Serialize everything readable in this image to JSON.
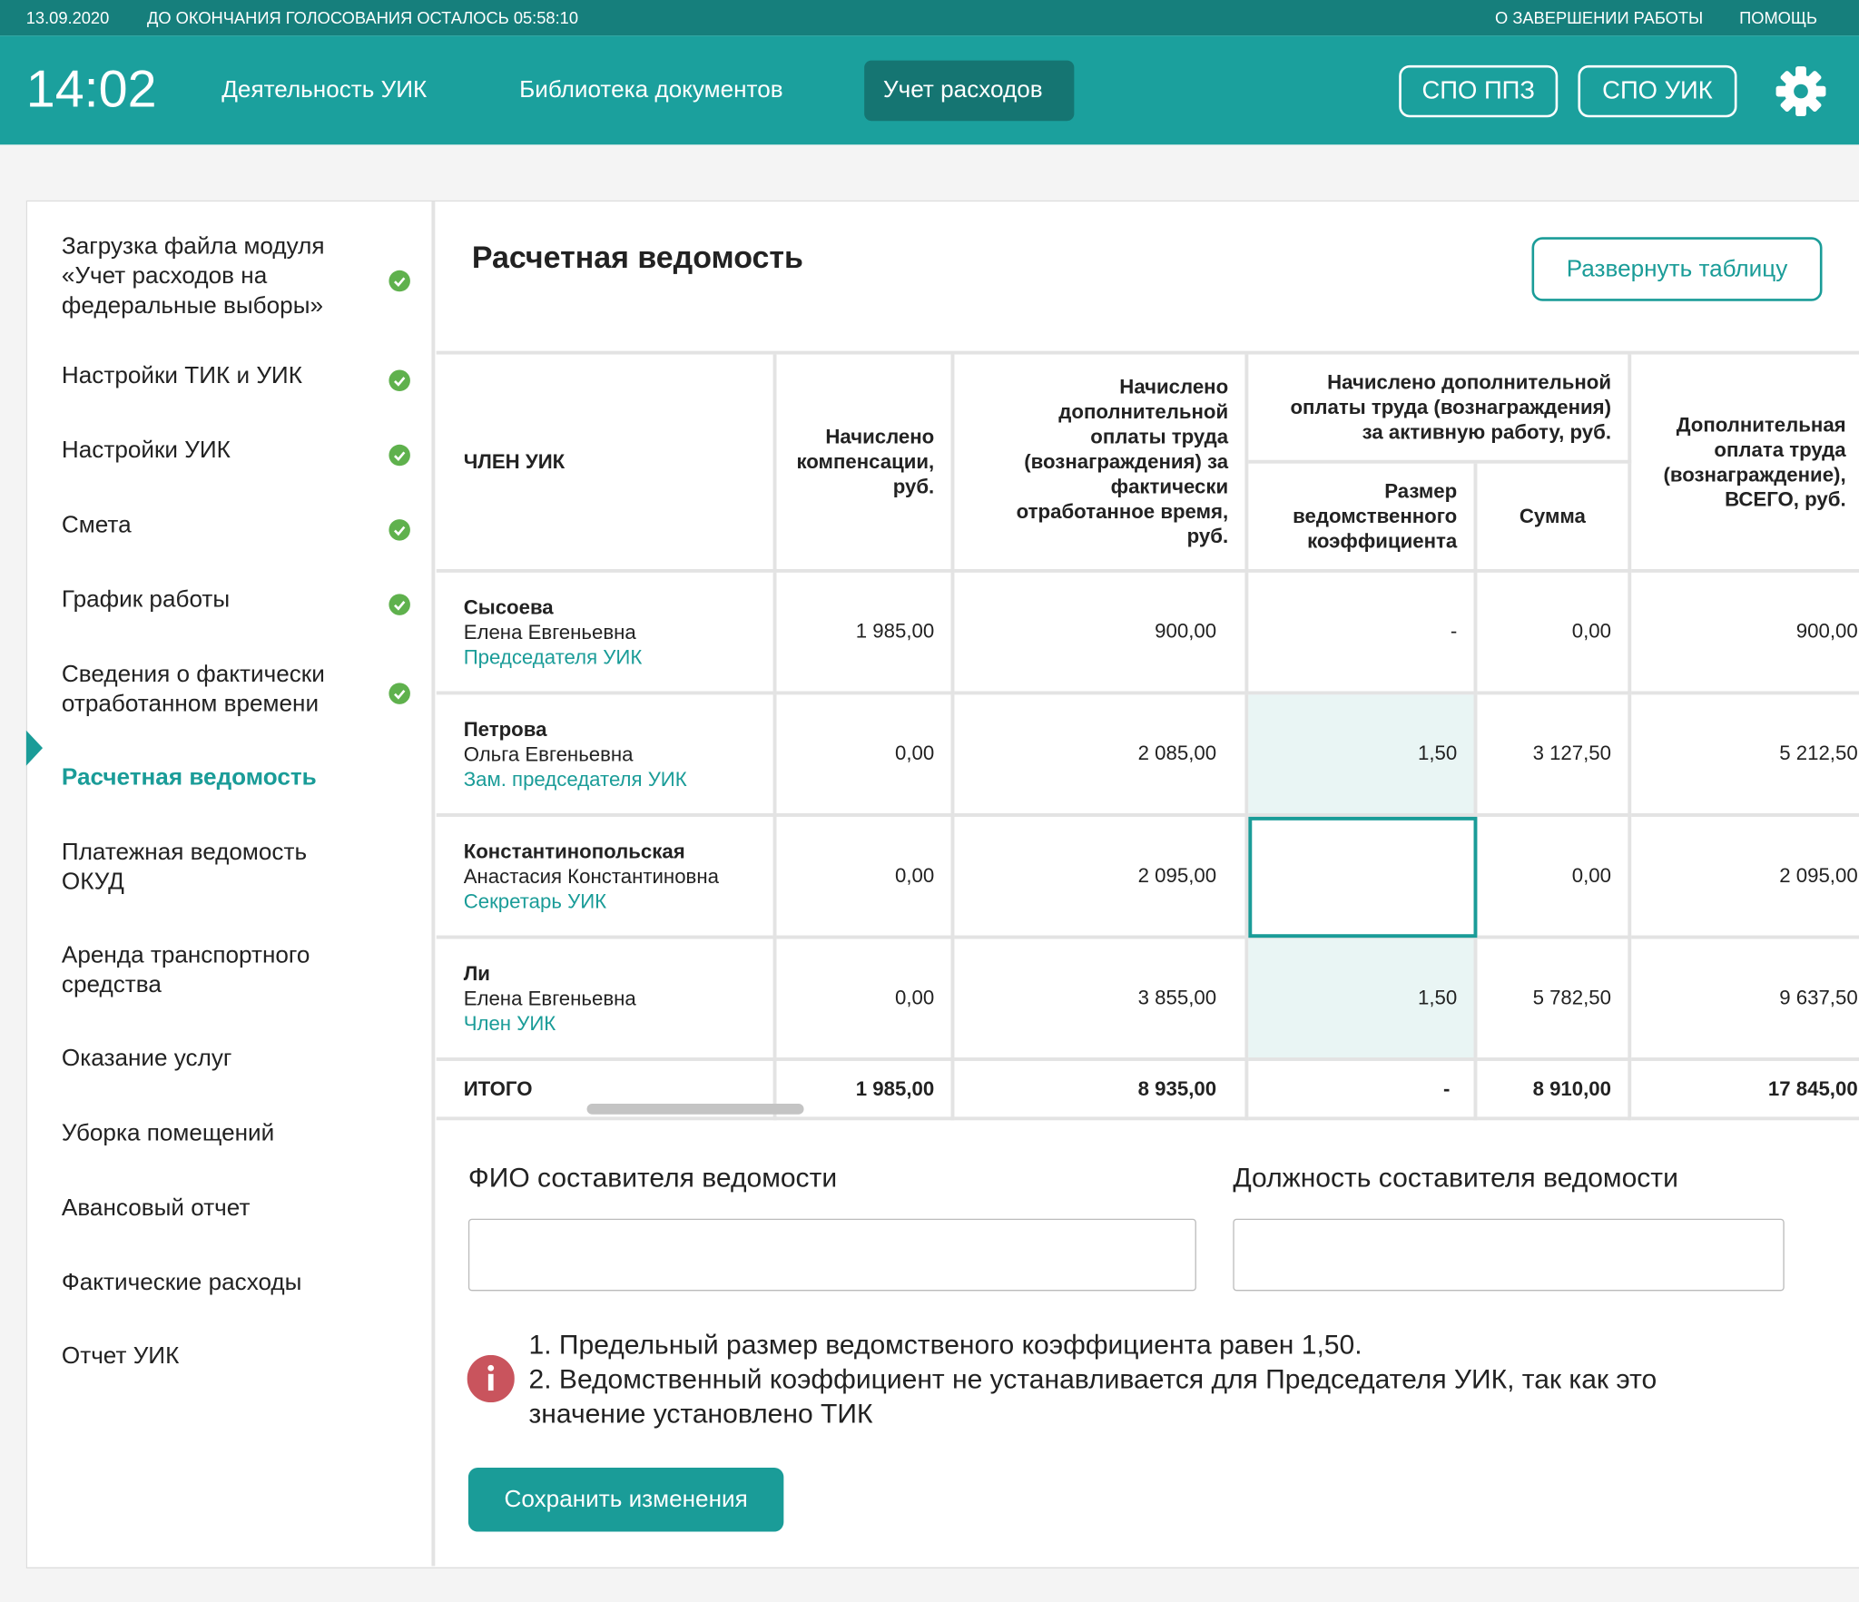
{
  "topbar": {
    "date": "13.09.2020",
    "countdown": "ДО ОКОНЧАНИЯ ГОЛОСОВАНИЯ ОСТАЛОСЬ 05:58:10",
    "links": [
      "О ЗАВЕРШЕНИИ РАБОТЫ",
      "ПОМОЩЬ"
    ]
  },
  "header": {
    "time": "14:02",
    "nav": [
      "Деятельность УИК",
      "Библиотека документов",
      "Учет расходов"
    ],
    "active_nav": 2,
    "buttons": [
      "СПО ППЗ",
      "СПО УИК"
    ]
  },
  "sidebar": {
    "items": [
      {
        "label": "Загрузка файла модуля «Учет расходов на федеральные выборы»",
        "done": true
      },
      {
        "label": "Настройки ТИК и УИК",
        "done": true
      },
      {
        "label": "Настройки УИК",
        "done": true
      },
      {
        "label": "Смета",
        "done": true
      },
      {
        "label": "График работы",
        "done": true
      },
      {
        "label": "Сведения о фактически отработанном времени",
        "done": true
      },
      {
        "label": "Расчетная ведомость",
        "done": false,
        "active": true
      },
      {
        "label": "Платежная ведомость ОКУД",
        "done": false
      },
      {
        "label": "Аренда транспортного средства",
        "done": false
      },
      {
        "label": "Оказание услуг",
        "done": false
      },
      {
        "label": "Уборка помещений",
        "done": false
      },
      {
        "label": "Авансовый отчет",
        "done": false
      },
      {
        "label": "Фактические расходы",
        "done": false
      },
      {
        "label": "Отчет УИК",
        "done": false
      }
    ]
  },
  "main": {
    "title": "Расчетная ведомость",
    "expand_button": "Развернуть таблицу",
    "table": {
      "headers": {
        "member": "ЧЛЕН УИК",
        "compensation": "Начислено компенсации, руб.",
        "worked": "Начислено дополнительной оплаты труда (вознаграждения) за фактически отработанное время, руб.",
        "active_group": "Начислено дополнительной оплаты труда (вознаграждения) за активную работу, руб.",
        "coefficient": "Размер ведомственного коэффициента",
        "sum": "Сумма",
        "total": "Дополнительная оплата труда (вознаграждение), ВСЕГО, руб."
      },
      "rows": [
        {
          "surname": "Сысоева",
          "name": "Елена Евгеньевна",
          "role": "Председателя УИК",
          "compensation": "1 985,00",
          "worked": "900,00",
          "coefficient": "-",
          "sum": "0,00",
          "total": "900,00"
        },
        {
          "surname": "Петрова",
          "name": "Ольга Евгеньевна",
          "role": "Зам. председателя УИК",
          "compensation": "0,00",
          "worked": "2 085,00",
          "coefficient": "1,50",
          "sum": "3 127,50",
          "total": "5 212,50"
        },
        {
          "surname": "Константинопольская",
          "name": "Анастасия Константиновна",
          "role": "Секретарь УИК",
          "compensation": "0,00",
          "worked": "2 095,00",
          "coefficient": null,
          "sum": "0,00",
          "total": "2 095,00"
        },
        {
          "surname": "Ли",
          "name": "Елена Евгеньевна",
          "role": "Член УИК",
          "compensation": "0,00",
          "worked": "3 855,00",
          "coefficient": "1,50",
          "sum": "5 782,50",
          "total": "9 637,50"
        }
      ],
      "totals": {
        "label": "ИТОГО",
        "compensation": "1 985,00",
        "worked": "8 935,00",
        "coefficient": "-",
        "sum": "8 910,00",
        "total": "17 845,00"
      }
    },
    "form": {
      "author_name": "ФИО составителя ведомости",
      "author_position": "Должность составителя ведомости"
    },
    "notes": [
      "1. Предельный размер ведомственого коэффициента равен 1,50.",
      "2. Ведомственный коэффициент не устанавливается для Председателя УИК, так как это значение установлено ТИК"
    ],
    "save_button": "Сохранить изменения"
  }
}
